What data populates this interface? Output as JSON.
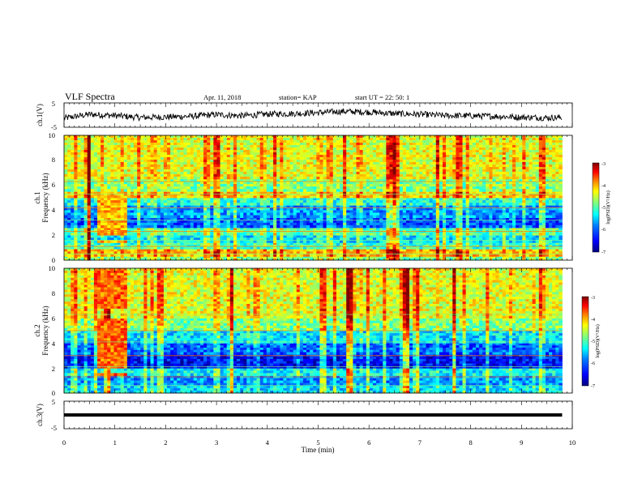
{
  "header": {
    "title": "VLF Spectra",
    "date": "Apr. 11, 2018",
    "station": "station= KAP",
    "start_time": "start  UT =   22: 50: 1"
  },
  "chart_data": [
    {
      "type": "line",
      "panel": "ch1-waveform",
      "ylabel": "ch.1(V)",
      "ylim": [
        -5,
        5
      ],
      "xlim": [
        0,
        10
      ],
      "ytick_labels": [
        "5",
        "-5"
      ],
      "x": [
        0,
        0.5,
        1,
        1.5,
        2,
        2.5,
        3,
        3.5,
        4,
        4.5,
        5,
        5.5,
        6,
        6.5,
        7,
        7.5,
        8,
        8.5,
        9,
        9.5,
        9.8
      ],
      "values": [
        -1.3,
        0.3,
        -0.2,
        -1.0,
        -0.8,
        -0.5,
        0.2,
        -0.3,
        0.4,
        0.6,
        1.0,
        1.5,
        1.2,
        0.6,
        0.3,
        -0.2,
        -0.3,
        -0.5,
        -0.9,
        -1.1,
        -1.0
      ]
    },
    {
      "type": "heatmap",
      "panel": "ch1-spectrogram",
      "ylabel_line1": "ch.1",
      "ylabel_line2": "Frequency (kHz)",
      "ylim": [
        0,
        10
      ],
      "xlim": [
        0,
        10
      ],
      "ytick_labels": [
        "0",
        "2",
        "4",
        "6",
        "8",
        "10"
      ],
      "colorbar_label": "log(PSD)(V²/Hz)",
      "colorbar_range": [
        -7,
        -3
      ],
      "colorbar_tick_labels": [
        "-3",
        "-4",
        "-5",
        "-6",
        "-7"
      ],
      "bands": [
        {
          "f0": 0.0,
          "f1": 0.3,
          "level": -5.0
        },
        {
          "f0": 0.3,
          "f1": 0.9,
          "level": -4.3
        },
        {
          "f0": 0.9,
          "f1": 1.4,
          "level": -5.3
        },
        {
          "f0": 1.4,
          "f1": 2.0,
          "level": -5.6
        },
        {
          "f0": 2.0,
          "f1": 2.6,
          "level": -5.2
        },
        {
          "f0": 2.6,
          "f1": 3.4,
          "level": -6.2
        },
        {
          "f0": 3.4,
          "f1": 4.4,
          "level": -5.9
        },
        {
          "f0": 4.4,
          "f1": 5.0,
          "level": -5.4
        },
        {
          "f0": 5.0,
          "f1": 5.5,
          "level": -4.4
        },
        {
          "f0": 5.5,
          "f1": 6.5,
          "level": -5.0
        },
        {
          "f0": 6.5,
          "f1": 10.0,
          "level": -4.6
        }
      ],
      "lines_khz": [
        0.5,
        1.1,
        1.6,
        2.3,
        3.2,
        4.2,
        5.3,
        6.3
      ],
      "burst": {
        "t0": 0.65,
        "t1": 1.2,
        "f0": 1.9,
        "f1": 5.4,
        "level": -4.2
      }
    },
    {
      "type": "heatmap",
      "panel": "ch2-spectrogram",
      "ylabel_line1": "ch.2",
      "ylabel_line2": "Frequency (kHz)",
      "ylim": [
        0,
        10
      ],
      "xlim": [
        0,
        10
      ],
      "ytick_labels": [
        "0",
        "2",
        "4",
        "6",
        "8",
        "10"
      ],
      "colorbar_label": "log(PSD)(V²/Hz)",
      "colorbar_range": [
        -7,
        -3
      ],
      "colorbar_tick_labels": [
        "-3",
        "-4",
        "-5",
        "-6",
        "-7"
      ],
      "bands": [
        {
          "f0": 0.0,
          "f1": 0.6,
          "level": -5.6
        },
        {
          "f0": 0.6,
          "f1": 1.4,
          "level": -5.9
        },
        {
          "f0": 1.4,
          "f1": 2.0,
          "level": -5.5
        },
        {
          "f0": 2.0,
          "f1": 3.1,
          "level": -6.5
        },
        {
          "f0": 3.1,
          "f1": 4.0,
          "level": -6.1
        },
        {
          "f0": 4.0,
          "f1": 5.0,
          "level": -5.6
        },
        {
          "f0": 5.0,
          "f1": 6.0,
          "level": -5.0
        },
        {
          "f0": 6.0,
          "f1": 10.0,
          "level": -4.6
        }
      ],
      "lines_khz": [
        0.6,
        1.3,
        2.1,
        3.0,
        4.1,
        5.0,
        6.3
      ],
      "burst": {
        "t0": 0.65,
        "t1": 1.2,
        "f0": 1.9,
        "f1": 9.2,
        "level": -3.9
      }
    },
    {
      "type": "line",
      "panel": "ch3-waveform",
      "ylabel": "ch.3(V)",
      "ylim": [
        -5,
        5
      ],
      "xlim": [
        0,
        10
      ],
      "ytick_labels": [
        "5",
        "-5"
      ],
      "x": [
        0,
        9.8
      ],
      "values": [
        0.0,
        0.0
      ]
    }
  ],
  "x_axis": {
    "label": "Time (min)",
    "tick_labels": [
      "0",
      "1",
      "2",
      "3",
      "4",
      "5",
      "6",
      "7",
      "8",
      "9",
      "10"
    ]
  },
  "colors": {
    "colormap": [
      "#00007f",
      "#0000ff",
      "#007fff",
      "#00ffff",
      "#7fff7f",
      "#ffff00",
      "#ff7f00",
      "#ff0000",
      "#7f0000"
    ]
  }
}
